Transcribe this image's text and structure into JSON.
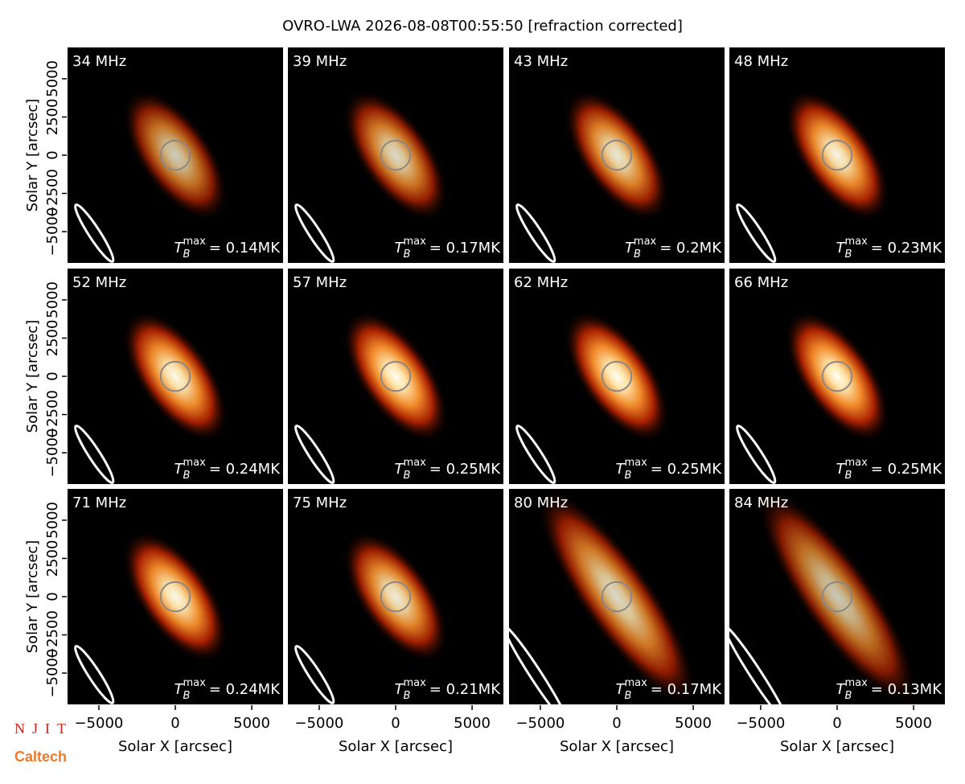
{
  "title": "OVRO-LWA 2026-08-08T00:55:50 [refraction corrected]",
  "tb_symbol": "T",
  "tb_sub": "B",
  "tb_sup": "max",
  "logos": {
    "njit": "NJIT",
    "caltech": "Caltech"
  },
  "chart_data": [
    {
      "type": "image",
      "title": "34 MHz",
      "tmax": 0.14,
      "tmax_label": "= 0.14MK",
      "xlim": [
        -7100,
        7100
      ],
      "ylim": [
        -7100,
        7100
      ],
      "ylabel": "Solar Y [arcsec]",
      "yticks": [
        {
          "value": -5000,
          "label": "−5000"
        },
        {
          "value": -2500,
          "label": "−2500"
        },
        0,
        2500,
        5000
      ]
    },
    {
      "type": "image",
      "title": "39 MHz",
      "tmax": 0.17,
      "tmax_label": "= 0.17MK",
      "xlim": [
        -7100,
        7100
      ],
      "ylim": [
        -7100,
        7100
      ]
    },
    {
      "type": "image",
      "title": "43 MHz",
      "tmax": 0.2,
      "tmax_label": "= 0.2MK",
      "xlim": [
        -7100,
        7100
      ],
      "ylim": [
        -7100,
        7100
      ]
    },
    {
      "type": "image",
      "title": "48 MHz",
      "tmax": 0.23,
      "tmax_label": "= 0.23MK",
      "xlim": [
        -7100,
        7100
      ],
      "ylim": [
        -7100,
        7100
      ]
    },
    {
      "type": "image",
      "title": "52 MHz",
      "tmax": 0.24,
      "tmax_label": "= 0.24MK",
      "xlim": [
        -7100,
        7100
      ],
      "ylim": [
        -7100,
        7100
      ],
      "ylabel": "Solar Y [arcsec]",
      "yticks": [
        {
          "value": -5000,
          "label": "−5000"
        },
        {
          "value": -2500,
          "label": "−2500"
        },
        0,
        2500,
        5000
      ]
    },
    {
      "type": "image",
      "title": "57 MHz",
      "tmax": 0.25,
      "tmax_label": "= 0.25MK",
      "xlim": [
        -7100,
        7100
      ],
      "ylim": [
        -7100,
        7100
      ]
    },
    {
      "type": "image",
      "title": "62 MHz",
      "tmax": 0.25,
      "tmax_label": "= 0.25MK",
      "xlim": [
        -7100,
        7100
      ],
      "ylim": [
        -7100,
        7100
      ]
    },
    {
      "type": "image",
      "title": "66 MHz",
      "tmax": 0.25,
      "tmax_label": "= 0.25MK",
      "xlim": [
        -7100,
        7100
      ],
      "ylim": [
        -7100,
        7100
      ]
    },
    {
      "type": "image",
      "title": "71 MHz",
      "tmax": 0.24,
      "tmax_label": "= 0.24MK",
      "xlim": [
        -7100,
        7100
      ],
      "ylim": [
        -7100,
        7100
      ],
      "ylabel": "Solar Y [arcsec]",
      "yticks": [
        {
          "value": -5000,
          "label": "−5000"
        },
        {
          "value": -2500,
          "label": "−2500"
        },
        0,
        2500,
        5000
      ],
      "xlabel": "Solar X [arcsec]",
      "xticks": [
        {
          "value": -5000,
          "label": "−5000"
        },
        0,
        5000
      ]
    },
    {
      "type": "image",
      "title": "75 MHz",
      "tmax": 0.21,
      "tmax_label": "= 0.21MK",
      "xlim": [
        -7100,
        7100
      ],
      "ylim": [
        -7100,
        7100
      ],
      "xlabel": "Solar X [arcsec]",
      "xticks": [
        {
          "value": -5000,
          "label": "−5000"
        },
        0,
        5000
      ]
    },
    {
      "type": "image",
      "title": "80 MHz",
      "tmax": 0.17,
      "tmax_label": "= 0.17MK",
      "xlim": [
        -7100,
        7100
      ],
      "ylim": [
        -7100,
        7100
      ],
      "xlabel": "Solar X [arcsec]",
      "xticks": [
        {
          "value": -5000,
          "label": "−5000"
        },
        0,
        5000
      ]
    },
    {
      "type": "image",
      "title": "84 MHz",
      "tmax": 0.13,
      "tmax_label": "= 0.13MK",
      "xlim": [
        -7100,
        7100
      ],
      "ylim": [
        -7100,
        7100
      ],
      "xlabel": "Solar X [arcsec]",
      "xticks": [
        {
          "value": -5000,
          "label": "−5000"
        },
        0,
        5000
      ]
    }
  ]
}
